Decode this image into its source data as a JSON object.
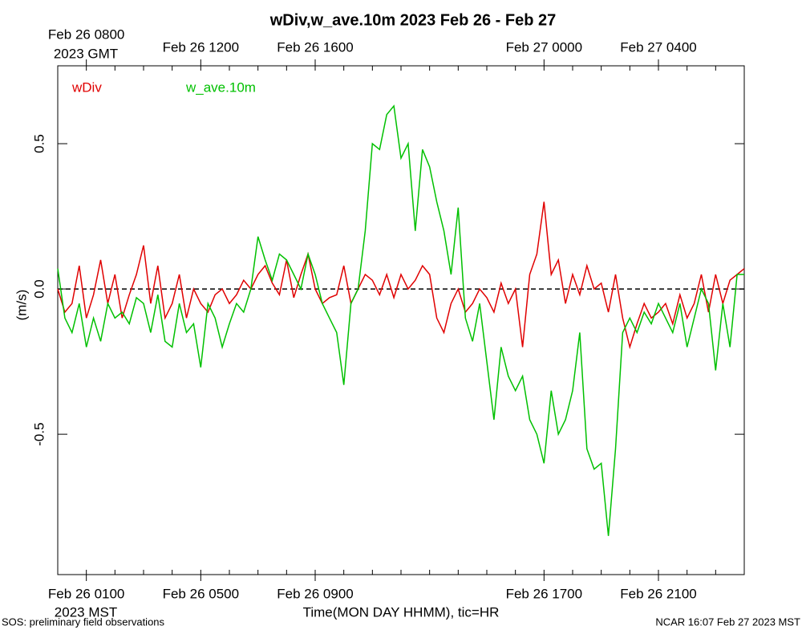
{
  "chart_data": {
    "type": "line",
    "title": "wDiv,w_ave.10m 2023 Feb 26 - Feb 27",
    "y_label": "(m/s)",
    "x_label": "Time(MON DAY HHMM), tic=HR",
    "x_note": "2023 MST",
    "x2_note": "2023 GMT",
    "footer_left": "SOS: preliminary field observations",
    "footer_right": "NCAR 16:07 Feb 27 2023 MST",
    "xlim": [
      0,
      24
    ],
    "ylim": [
      -0.983,
      0.768
    ],
    "xticks": [
      {
        "value": 1,
        "label": "Feb 26 0100"
      },
      {
        "value": 5,
        "label": "Feb 26 0500"
      },
      {
        "value": 9,
        "label": "Feb 26 0900"
      },
      {
        "value": 17,
        "label": "Feb 26 1700"
      },
      {
        "value": 21,
        "label": "Feb 26 2100"
      }
    ],
    "x2ticks": [
      {
        "value": 1,
        "label": "Feb 26 0800"
      },
      {
        "value": 5,
        "label": "Feb 26 1200"
      },
      {
        "value": 9,
        "label": "Feb 26 1600"
      },
      {
        "value": 17,
        "label": "Feb 27 0000"
      },
      {
        "value": 21,
        "label": "Feb 27 0400"
      }
    ],
    "xminorticks": [
      0,
      1,
      2,
      3,
      4,
      5,
      6,
      7,
      8,
      9,
      10,
      11,
      12,
      13,
      14,
      15,
      16,
      17,
      18,
      19,
      20,
      21,
      22,
      23,
      24
    ],
    "yticks": [
      -0.5,
      {
        "value": 0,
        "label": "0.0"
      },
      0.5
    ],
    "hline": 0,
    "x": [
      0,
      0.25,
      0.5,
      0.75,
      1,
      1.25,
      1.5,
      1.75,
      2,
      2.25,
      2.5,
      2.75,
      3,
      3.25,
      3.5,
      3.75,
      4,
      4.25,
      4.5,
      4.75,
      5,
      5.25,
      5.5,
      5.75,
      6,
      6.25,
      6.5,
      6.75,
      7,
      7.25,
      7.5,
      7.75,
      8,
      8.25,
      8.5,
      8.75,
      9,
      9.25,
      9.5,
      9.75,
      10,
      10.25,
      10.5,
      10.75,
      11,
      11.25,
      11.5,
      11.75,
      12,
      12.25,
      12.5,
      12.75,
      13,
      13.25,
      13.5,
      13.75,
      14,
      14.25,
      14.5,
      14.75,
      15,
      15.25,
      15.5,
      15.75,
      16,
      16.25,
      16.5,
      16.75,
      17,
      17.25,
      17.5,
      17.75,
      18,
      18.25,
      18.5,
      18.75,
      19,
      19.25,
      19.5,
      19.75,
      20,
      20.25,
      20.5,
      20.75,
      21,
      21.25,
      21.5,
      21.75,
      22,
      22.25,
      22.5,
      22.75,
      23,
      23.25,
      23.5,
      23.75,
      24
    ],
    "series": [
      {
        "name": "wDiv",
        "color": "#e00000",
        "values": [
          0.0,
          -0.08,
          -0.05,
          0.08,
          -0.1,
          -0.02,
          0.1,
          -0.05,
          0.05,
          -0.1,
          -0.02,
          0.05,
          0.15,
          -0.05,
          0.08,
          -0.1,
          -0.05,
          0.05,
          -0.1,
          0.0,
          -0.05,
          -0.08,
          -0.02,
          0.0,
          -0.05,
          -0.02,
          0.03,
          0.0,
          0.05,
          0.08,
          0.02,
          -0.02,
          0.1,
          -0.03,
          0.05,
          0.12,
          0.0,
          -0.05,
          -0.03,
          -0.02,
          0.08,
          -0.05,
          0.0,
          0.05,
          0.03,
          -0.02,
          0.05,
          -0.03,
          0.05,
          0.0,
          0.03,
          0.08,
          0.05,
          -0.1,
          -0.15,
          -0.05,
          0.0,
          -0.08,
          -0.05,
          0.0,
          -0.03,
          -0.08,
          0.02,
          -0.05,
          0.0,
          -0.2,
          0.05,
          0.12,
          0.3,
          0.05,
          0.1,
          -0.05,
          0.05,
          -0.02,
          0.08,
          0.0,
          0.02,
          -0.08,
          0.05,
          -0.1,
          -0.2,
          -0.12,
          -0.05,
          -0.1,
          -0.08,
          -0.05,
          -0.12,
          -0.02,
          -0.1,
          -0.05,
          0.05,
          -0.08,
          0.05,
          -0.05,
          0.03,
          0.05,
          0.07
        ]
      },
      {
        "name": "w_ave.10m",
        "color": "#00c000",
        "values": [
          0.07,
          -0.1,
          -0.15,
          -0.05,
          -0.2,
          -0.1,
          -0.18,
          -0.05,
          -0.1,
          -0.08,
          -0.12,
          -0.03,
          -0.05,
          -0.15,
          -0.02,
          -0.18,
          -0.2,
          -0.05,
          -0.15,
          -0.12,
          -0.27,
          -0.05,
          -0.1,
          -0.2,
          -0.12,
          -0.05,
          -0.08,
          0.0,
          0.18,
          0.1,
          0.03,
          0.12,
          0.1,
          0.05,
          0.0,
          0.12,
          0.05,
          -0.05,
          -0.1,
          -0.15,
          -0.33,
          -0.05,
          0.0,
          0.2,
          0.5,
          0.48,
          0.6,
          0.63,
          0.45,
          0.5,
          0.2,
          0.48,
          0.42,
          0.3,
          0.2,
          0.05,
          0.28,
          -0.1,
          -0.18,
          -0.05,
          -0.25,
          -0.45,
          -0.2,
          -0.3,
          -0.35,
          -0.3,
          -0.45,
          -0.5,
          -0.6,
          -0.35,
          -0.5,
          -0.45,
          -0.35,
          -0.15,
          -0.55,
          -0.62,
          -0.6,
          -0.85,
          -0.55,
          -0.15,
          -0.1,
          -0.15,
          -0.08,
          -0.12,
          -0.05,
          -0.1,
          -0.15,
          -0.05,
          -0.2,
          -0.1,
          0.0,
          -0.05,
          -0.28,
          -0.05,
          -0.2,
          0.05,
          0.05
        ]
      }
    ]
  }
}
